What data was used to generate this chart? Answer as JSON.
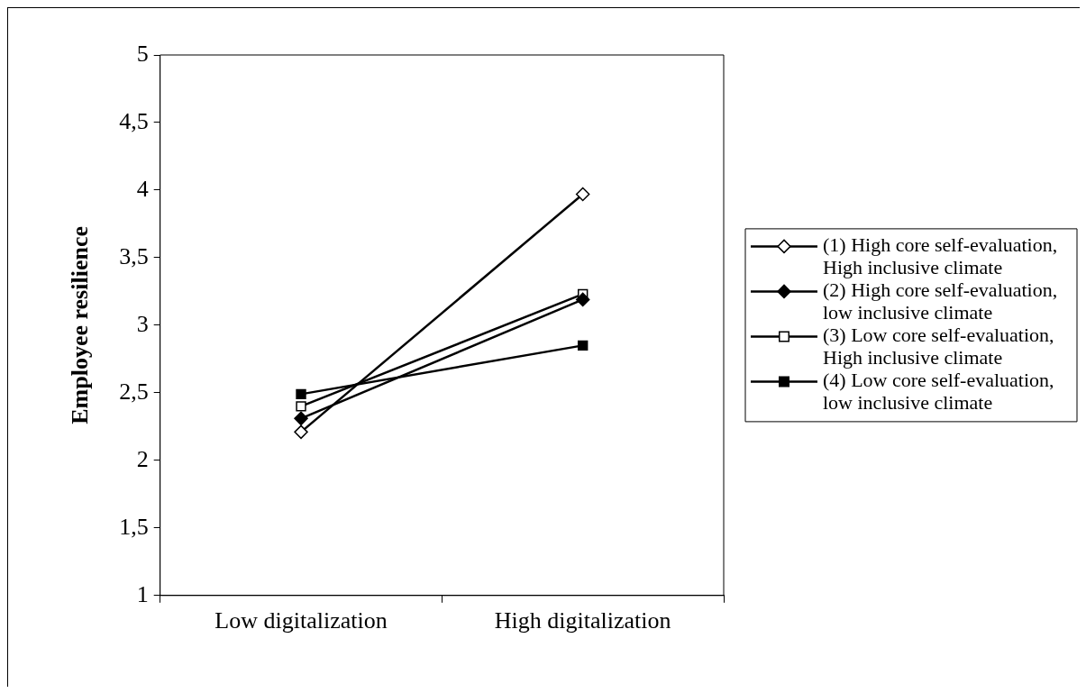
{
  "chart_data": {
    "type": "line",
    "ylabel": "Employee resilience",
    "categories": [
      "Low digitalization",
      "High digitalization"
    ],
    "series": [
      {
        "name": "(1) High core self-evaluation, High inclusive climate",
        "color": "#ffffff",
        "marker": "diamond",
        "values": [
          2.21,
          3.97
        ]
      },
      {
        "name": "(2) High core self-evaluation, low inclusive climate",
        "color": "#000000",
        "marker": "diamond",
        "values": [
          2.31,
          3.19
        ]
      },
      {
        "name": "(3) Low core self-evaluation, High inclusive climate",
        "color": "#ffffff",
        "marker": "square",
        "values": [
          2.4,
          3.23
        ]
      },
      {
        "name": "(4) Low core self-evaluation, low inclusive climate",
        "color": "#000000",
        "marker": "square",
        "values": [
          2.49,
          2.85
        ]
      }
    ],
    "ylim": [
      1,
      5
    ],
    "yticks": [
      1,
      {
        "value": 1.5,
        "label": "1,5"
      },
      2,
      {
        "value": 2.5,
        "label": "2,5"
      },
      3,
      {
        "value": 3.5,
        "label": "3,5"
      },
      4,
      {
        "value": 4.5,
        "label": "4,5"
      },
      5
    ],
    "grid": false,
    "legend": "right",
    "line_style": "solid"
  }
}
